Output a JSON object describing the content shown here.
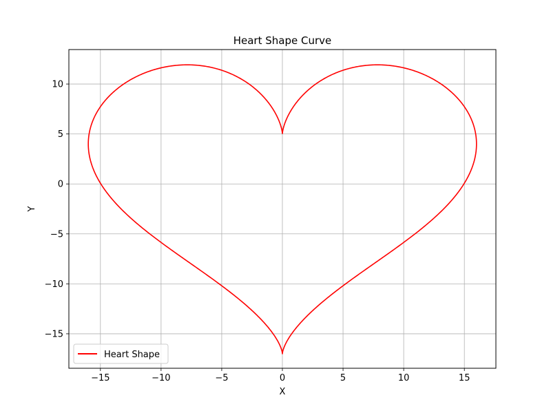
{
  "chart_data": {
    "type": "line",
    "title": "Heart Shape Curve",
    "xlabel": "X",
    "ylabel": "Y",
    "xlim": [
      -17.6,
      17.6
    ],
    "ylim": [
      -18.45,
      13.45
    ],
    "xticks": [
      -15,
      -10,
      -5,
      0,
      5,
      10,
      15
    ],
    "yticks": [
      -15,
      -10,
      -5,
      0,
      5,
      10
    ],
    "grid": true,
    "legend_position": "lower-left",
    "series": [
      {
        "name": "Heart Shape",
        "color": "#ff0000",
        "equation": "x = 16 sin^3(t), y = 13 cos(t) - 5 cos(2t) - 2 cos(3t) - cos(4t), t in [0, 2π]"
      }
    ]
  }
}
